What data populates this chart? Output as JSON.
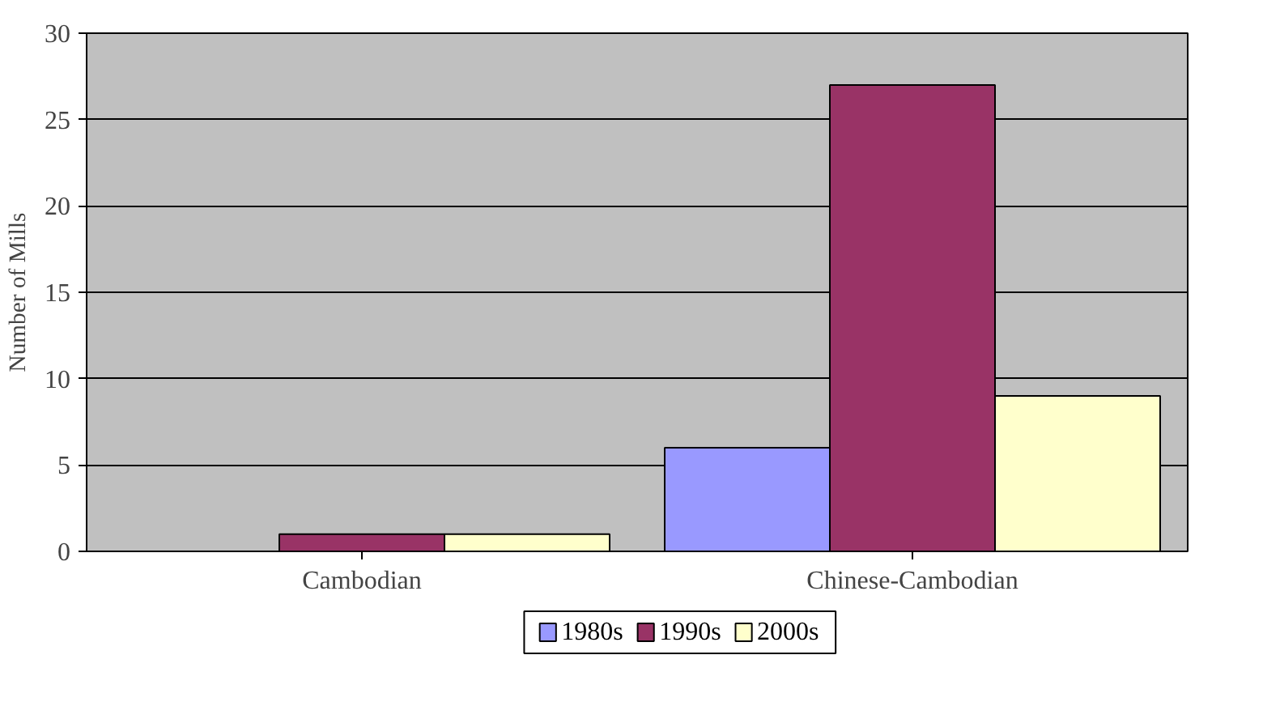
{
  "chart_data": {
    "type": "bar",
    "ylabel": "Number of Mills",
    "categories": [
      "Cambodian",
      "Chinese-Cambodian"
    ],
    "series": [
      {
        "name": "1980s",
        "color": "#9999ff",
        "values": [
          0,
          6
        ]
      },
      {
        "name": "1990s",
        "color": "#993366",
        "values": [
          1,
          27
        ]
      },
      {
        "name": "2000s",
        "color": "#ffffcc",
        "values": [
          1,
          9
        ]
      }
    ],
    "ylim": [
      0,
      30
    ],
    "yticks": [
      0,
      5,
      10,
      15,
      20,
      25,
      30
    ],
    "grid": "y",
    "legend": "bottom"
  }
}
